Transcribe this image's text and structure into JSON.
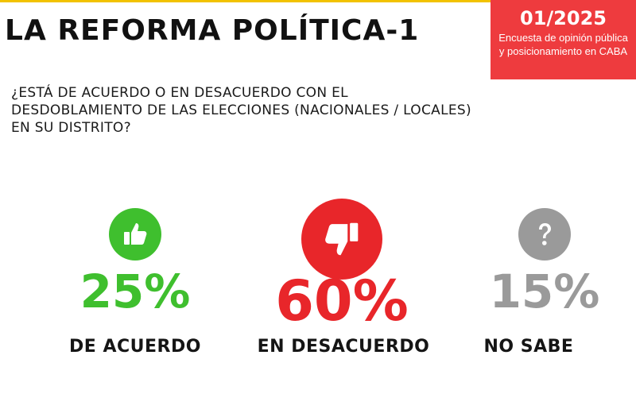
{
  "header": {
    "title": "LA REFORMA POLÍTICA-1",
    "badge_code": "01/2025",
    "badge_text": "Encuesta de opinión pública y posicionamiento en CABA",
    "badge_color": "#ee3b3e",
    "accent_line_color": "#f2c200"
  },
  "question": "¿ESTÁ DE ACUERDO O EN DESACUERDO CON EL\nDESDOBLAMIENTO DE LAS ELECCIONES (NACIONALES / LOCALES)\nEN SU DISTRITO?",
  "chart_data": {
    "type": "bar",
    "categories": [
      "DE ACUERDO",
      "EN DESACUERDO",
      "NO SABE"
    ],
    "values": [
      25,
      60,
      15
    ],
    "value_labels": [
      "25%",
      "60%",
      "15%"
    ],
    "unit": "%",
    "colors": [
      "#3fbf2e",
      "#e8262a",
      "#9a9a9a"
    ],
    "icons": [
      "thumbs-up-icon",
      "thumbs-down-icon",
      "question-mark-icon"
    ],
    "title": "",
    "xlabel": "",
    "ylabel": ""
  }
}
